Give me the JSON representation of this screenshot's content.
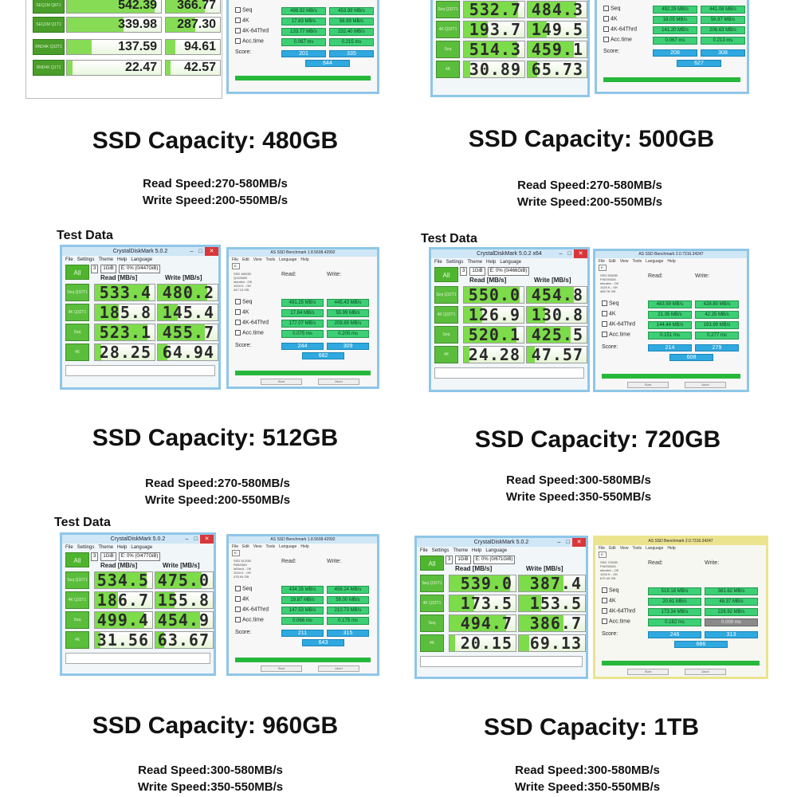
{
  "top_left": {
    "rows": [
      {
        "label": "SEQ1M Q8T1",
        "read": "542.39",
        "write": "366.77"
      },
      {
        "label": "SEQ1M Q1T1",
        "read": "339.98",
        "write": "287.30"
      },
      {
        "label": "RND4K Q32T1",
        "read": "137.59",
        "write": "94.61"
      },
      {
        "label": "RND4K Q1T1",
        "read": "22.47",
        "write": "42.57"
      }
    ],
    "asd": {
      "seq": [
        "498.92 MB/s",
        "453.99 MB/s"
      ],
      "k4": [
        "17.83 MB/s",
        "56.99 MB/s"
      ],
      "k4_64": [
        "133.77 MB/s",
        "232.40 MB/s"
      ],
      "acc": [
        "0.067 ms",
        "0.215 ms"
      ],
      "score": [
        "201",
        "335"
      ],
      "total": "644"
    }
  },
  "top_right": {
    "cdm": [
      [
        "532.7",
        "484.3"
      ],
      [
        "193.7",
        "149.5"
      ],
      [
        "514.3",
        "459.1"
      ],
      [
        "30.89",
        "65.73"
      ]
    ],
    "cdm_labels": [
      "Seq Q32T1",
      "4K Q32T1",
      "Seq",
      "4K"
    ],
    "asd": {
      "seq": [
        "492.29 MB/s",
        "441.08 MB/s"
      ],
      "k4": [
        "18.05 MB/s",
        "56.97 MB/s"
      ],
      "k4_64": [
        "141.20 MB/s",
        "206.63 MB/s"
      ],
      "acc": [
        "0.067 ms",
        "0.213 ms"
      ],
      "score": [
        "208",
        "308"
      ],
      "total": "627"
    }
  },
  "blocks": [
    {
      "capacity": "SSD Capacity: 480GB",
      "read": "Read Speed:270-580MB/s",
      "write": "Write Speed:200-550MB/s"
    },
    {
      "capacity": "SSD Capacity: 500GB",
      "read": "Read Speed:270-580MB/s",
      "write": "Write Speed:200-550MB/s"
    },
    {
      "capacity": "SSD Capacity: 512GB",
      "read": "Read Speed:270-580MB/s",
      "write": "Write Speed:200-550MB/s"
    },
    {
      "capacity": "SSD Capacity: 720GB",
      "read": "Read Speed:300-580MB/s",
      "write": "Write Speed:350-550MB/s"
    },
    {
      "capacity": "SSD Capacity: 960GB",
      "read": "Read Speed:300-580MB/s",
      "write": "Write Speed:350-550MB/s"
    },
    {
      "capacity": "SSD Capacity: 1TB",
      "read": "Read Speed:300-580MB/s",
      "write": "Write Speed:350-550MB/s"
    }
  ],
  "test_data_label": "Test Data",
  "screens": [
    {
      "cdm_title": "CrystalDiskMark 5.0.2",
      "cdm_menu": [
        "File",
        "Settings",
        "Theme",
        "Help",
        "Language"
      ],
      "cdm_sel": [
        "3",
        "1GiB",
        "E: 0% (0/447GiB)"
      ],
      "read_header": "Read [MB/s]",
      "write_header": "Write [MB/s]",
      "all": "All",
      "labels": [
        "Seq Q32T1",
        "4K Q32T1",
        "Seq",
        "4K"
      ],
      "values": [
        [
          "533.4",
          "480.2"
        ],
        [
          "185.8",
          "145.4"
        ],
        [
          "523.1",
          "455.7"
        ],
        [
          "28.25",
          "64.94"
        ]
      ],
      "fill": [
        [
          0.9,
          0.82
        ],
        [
          0.4,
          0.33
        ],
        [
          0.88,
          0.78
        ],
        [
          0.1,
          0.16
        ]
      ],
      "asd_title": "AS SSD Benchmark 1.8.5608.42992",
      "asd_info": [
        "SSD 480GB",
        "Q1126AD",
        "storahci - OK",
        "1024 K - OK",
        "447.13 GB"
      ],
      "asd": {
        "seq": [
          "491.25 MB/s",
          "445.43 MB/s"
        ],
        "k4": [
          "17.84 MB/s",
          "55.99 MB/s"
        ],
        "k4_64": [
          "177.07 MB/s",
          "208.89 MB/s"
        ],
        "acc": [
          "0.075 ms",
          "0.205 ms"
        ],
        "score": [
          "244",
          "309"
        ],
        "total": "682"
      }
    },
    {
      "cdm_title": "CrystalDiskMark 5.0.2 x64",
      "cdm_menu": [
        "File",
        "Settings",
        "Theme",
        "Help",
        "Language"
      ],
      "cdm_sel": [
        "3",
        "1GiB",
        "E: 0% (0/466GiB)"
      ],
      "read_header": "Read [MB/s]",
      "write_header": "Write [MB/s]",
      "all": "All",
      "labels": [
        "Seq Q32T1",
        "4K Q32T1",
        "Seq",
        "4K"
      ],
      "values": [
        [
          "550.0",
          "454.8"
        ],
        [
          "126.9",
          "130.8"
        ],
        [
          "520.1",
          "425.5"
        ],
        [
          "24.28",
          "47.57"
        ]
      ],
      "fill": [
        [
          0.93,
          0.78
        ],
        [
          0.3,
          0.31
        ],
        [
          0.88,
          0.73
        ],
        [
          0.09,
          0.13
        ]
      ],
      "asd_title": "AS SSD Benchmark 2.0.7316.34247",
      "asd_info": [
        "SSD 500GB",
        "FW200326",
        "storahci - OK",
        "1024 K - OK",
        "465.76 GB"
      ],
      "asd": {
        "seq": [
          "483.59 MB/s",
          "428.80 MB/s"
        ],
        "k4": [
          "21.35 MB/s",
          "42.25 MB/s"
        ],
        "k4_64": [
          "144.44 MB/s",
          "193.99 MB/s"
        ],
        "acc": [
          "0.151 ms",
          "0.277 ms"
        ],
        "score": [
          "214",
          "279"
        ],
        "total": "608"
      }
    },
    {
      "cdm_title": "CrystalDiskMark 5.0.2",
      "cdm_menu": [
        "File",
        "Settings",
        "Theme",
        "Help",
        "Language"
      ],
      "cdm_sel": [
        "3",
        "1GiB",
        "E: 0% (0/477GiB)"
      ],
      "read_header": "Read [MB/s]",
      "write_header": "Write [MB/s]",
      "all": "All",
      "labels": [
        "Seq Q32T1",
        "4K Q32T1",
        "Seq",
        "4K"
      ],
      "values": [
        [
          "534.5",
          "475.0"
        ],
        [
          "186.7",
          "155.8"
        ],
        [
          "499.4",
          "454.9"
        ],
        [
          "31.56",
          "63.67"
        ]
      ],
      "fill": [
        [
          0.9,
          0.8
        ],
        [
          0.4,
          0.34
        ],
        [
          0.86,
          0.78
        ],
        [
          0.1,
          0.15
        ]
      ],
      "asd_title": "AS SSD Benchmark 1.8.5608.42992",
      "asd_info": [
        "SSD 512GB",
        "R0520A0",
        "iaStorA - OK",
        "1024 K - OK",
        "476.94 GB"
      ],
      "asd": {
        "seq": [
          "434.35 MB/s",
          "456.24 MB/s"
        ],
        "k4": [
          "19.87 MB/s",
          "59.00 MB/s"
        ],
        "k4_64": [
          "147.53 MB/s",
          "210.73 MB/s"
        ],
        "acc": [
          "0.066 ms",
          "0.175 ms"
        ],
        "score": [
          "211",
          "315"
        ],
        "total": "643"
      }
    },
    {
      "cdm_title": "CrystalDiskMark 5.0.2",
      "cdm_menu": [
        "File",
        "Settings",
        "Theme",
        "Help",
        "Language"
      ],
      "cdm_sel": [
        "3",
        "1GiB",
        "E: 0% (0/671GiB)"
      ],
      "read_header": "Read [MB/s]",
      "write_header": "Write [MB/s]",
      "all": "All",
      "labels": [
        "Seq Q32T1",
        "4K Q32T1",
        "Seq",
        "4K"
      ],
      "values": [
        [
          "539.0",
          "387.4"
        ],
        [
          "173.5",
          "153.5"
        ],
        [
          "494.7",
          "386.7"
        ],
        [
          "20.15",
          "69.13"
        ]
      ],
      "fill": [
        [
          0.91,
          0.68
        ],
        [
          0.37,
          0.34
        ],
        [
          0.85,
          0.68
        ],
        [
          0.08,
          0.16
        ]
      ],
      "asd_title": "AS SSD Benchmark 2.0.7316.34247",
      "asd_info": [
        "SSD 720GB",
        "FW200326",
        "storahci - OK",
        "1024 K - OK",
        "670.40 GB"
      ],
      "asd": {
        "seq": [
          "519.18 MB/s",
          "381.62 MB/s"
        ],
        "k4": [
          "20.61 MB/s",
          "48.37 MB/s"
        ],
        "k4_64": [
          "173.34 MB/s",
          "226.92 MB/s"
        ],
        "acc": [
          "0.162 ms",
          "0.000 ms"
        ],
        "score": [
          "246",
          "313"
        ],
        "total": "686"
      }
    }
  ],
  "asd_labels": {
    "read": "Read:",
    "write": "Write:",
    "seq": "Seq",
    "k4": "4K",
    "k4_64": "4K-64Thrd",
    "acc": "Acc.time",
    "score": "Score:",
    "start": "Start",
    "abort": "Abort"
  }
}
